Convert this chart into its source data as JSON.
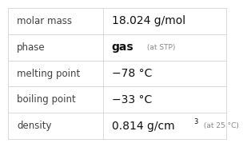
{
  "rows": [
    {
      "label": "molar mass",
      "value": "18.024 g/mol",
      "bold": false,
      "suffix": null,
      "superscript": null
    },
    {
      "label": "phase",
      "value": "gas",
      "bold": true,
      "suffix": " (at STP)",
      "superscript": null
    },
    {
      "label": "melting point",
      "value": "−78 °C",
      "bold": false,
      "suffix": null,
      "superscript": null
    },
    {
      "label": "boiling point",
      "value": "−33 °C",
      "bold": false,
      "suffix": null,
      "superscript": null
    },
    {
      "label": "density",
      "value": "0.814 g/cm",
      "bold": false,
      "suffix": " (at 25 °C)",
      "superscript": "3"
    }
  ],
  "bg_color": "#ffffff",
  "border_color": "#cccccc",
  "label_color": "#404040",
  "value_color": "#111111",
  "suffix_color": "#888888",
  "label_fontsize": 8.5,
  "value_fontsize": 10,
  "suffix_fontsize": 6.5,
  "super_fontsize": 6.0,
  "col_split": 0.435
}
